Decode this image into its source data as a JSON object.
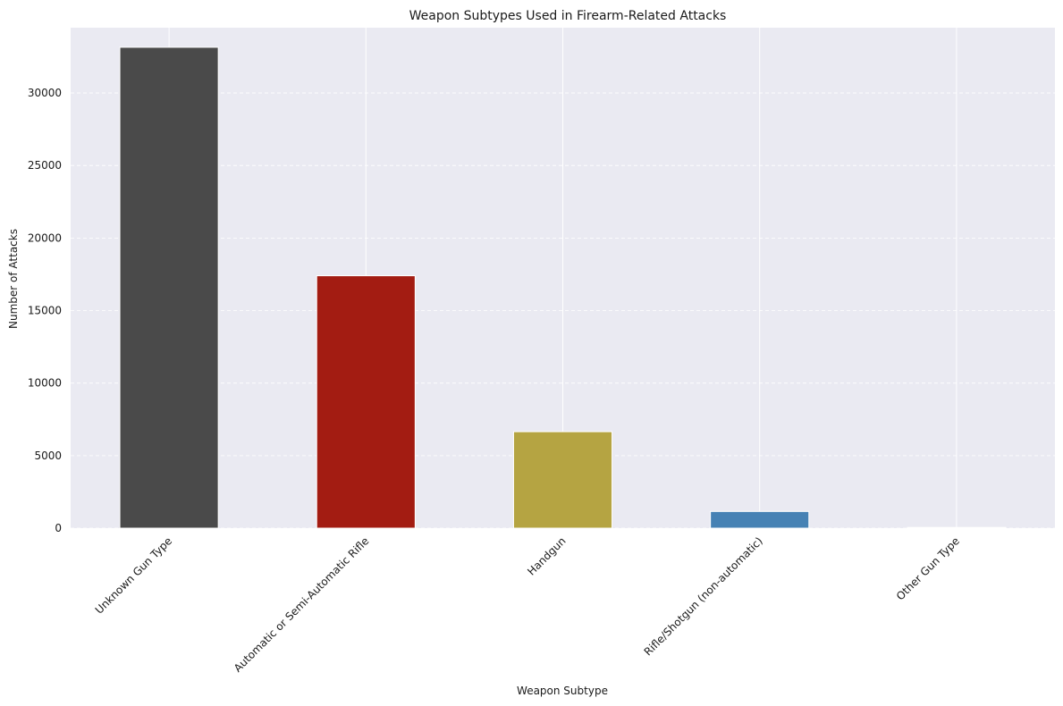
{
  "chart_data": {
    "type": "bar",
    "title": "Weapon Subtypes Used in Firearm-Related Attacks",
    "xlabel": "Weapon Subtype",
    "ylabel": "Number of Attacks",
    "categories": [
      "Unknown Gun Type",
      "Automatic or Semi-Automatic Rifle",
      "Handgun",
      "Rifle/Shotgun (non-automatic)",
      "Other Gun Type"
    ],
    "values": [
      33150,
      17400,
      6650,
      1150,
      50
    ],
    "colors": [
      "#4a4a4a",
      "#a31c12",
      "#b5a442",
      "#4682b4",
      "#e6e6e6"
    ],
    "ylim": [
      0,
      34500
    ],
    "yticks": [
      0,
      5000,
      10000,
      15000,
      20000,
      25000,
      30000
    ],
    "grid": true,
    "legend": "none",
    "background": "#eaeaf2"
  }
}
